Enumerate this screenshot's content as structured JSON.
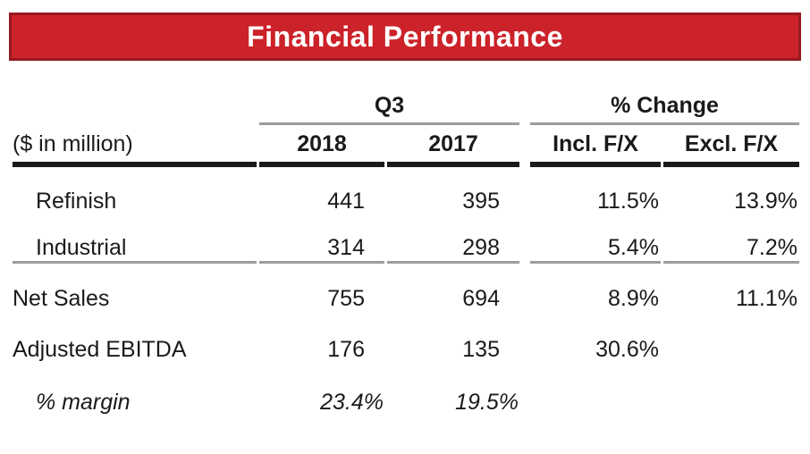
{
  "banner": {
    "title": "Financial Performance"
  },
  "theme": {
    "banner_bg": "#CC2229",
    "banner_border": "#96191E",
    "banner_text": "#FFFFFF",
    "rule_gray": "#9C9C9C",
    "text": "#1A1A1A"
  },
  "table": {
    "unit_label": "($ in million)",
    "groups": [
      {
        "label": "Q3"
      },
      {
        "label": "% Change"
      }
    ],
    "columns": [
      "2018",
      "2017",
      "Incl. F/X",
      "Excl. F/X"
    ],
    "rows": [
      {
        "label": "Refinish",
        "values": [
          "441",
          "395",
          "11.5%",
          "13.9%"
        ]
      },
      {
        "label": "Industrial",
        "values": [
          "314",
          "298",
          "5.4%",
          "7.2%"
        ]
      },
      {
        "label": "Net Sales",
        "values": [
          "755",
          "694",
          "8.9%",
          "11.1%"
        ]
      },
      {
        "label": "Adjusted EBITDA",
        "values": [
          "176",
          "135",
          "30.6%",
          ""
        ]
      },
      {
        "label": "% margin",
        "values": [
          "23.4%",
          "19.5%",
          "",
          ""
        ]
      }
    ]
  }
}
